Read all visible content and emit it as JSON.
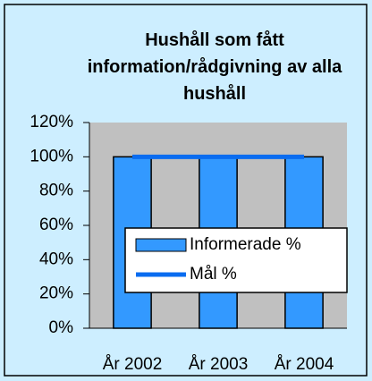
{
  "chart_data": {
    "type": "bar",
    "title": "Hushåll som fått information/rådgivning av alla hushåll",
    "categories": [
      "År 2002",
      "År 2003",
      "År 2004"
    ],
    "series": [
      {
        "name": "Informerade %",
        "type": "bar",
        "color": "#3399ff",
        "values": [
          100,
          100,
          100
        ]
      },
      {
        "name": "Mål %",
        "type": "line",
        "color": "#0a6cf0",
        "values": [
          100,
          100,
          100
        ]
      }
    ],
    "ylim": [
      0,
      120
    ],
    "yticks": [
      {
        "value": 0,
        "label": "0%"
      },
      {
        "value": 20,
        "label": "20%"
      },
      {
        "value": 40,
        "label": "40%"
      },
      {
        "value": 60,
        "label": "60%"
      },
      {
        "value": 80,
        "label": "80%"
      },
      {
        "value": 100,
        "label": "100%"
      },
      {
        "value": 120,
        "label": "120%"
      }
    ],
    "legend": "right"
  }
}
